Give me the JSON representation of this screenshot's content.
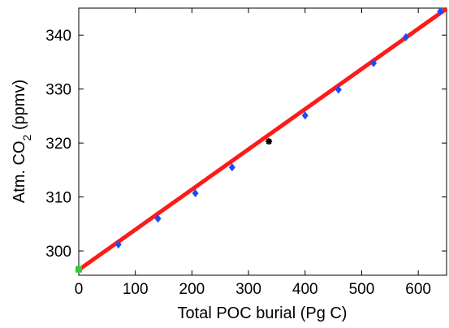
{
  "chart_data": {
    "type": "scatter",
    "title": "",
    "xlabel": "Total POC burial (Pg C)",
    "ylabel": {
      "prefix": "Atm. CO",
      "subscript": "2",
      "suffix": " (ppmv)"
    },
    "xlim": [
      0,
      650
    ],
    "ylim": [
      295.5,
      345
    ],
    "xticks": [
      {
        "value": 0,
        "label": "0"
      },
      {
        "value": 100,
        "label": "100"
      },
      {
        "value": 200,
        "label": "200"
      },
      {
        "value": 300,
        "label": "300"
      },
      {
        "value": 400,
        "label": "400"
      },
      {
        "value": 500,
        "label": "500"
      },
      {
        "value": 600,
        "label": "600"
      }
    ],
    "yticks": [
      {
        "value": 300,
        "label": "300"
      },
      {
        "value": 310,
        "label": "310"
      },
      {
        "value": 320,
        "label": "320"
      },
      {
        "value": 330,
        "label": "330"
      },
      {
        "value": 340,
        "label": "340"
      }
    ],
    "grid": false,
    "series": [
      {
        "marker": "diamond",
        "color": "#1a4cff",
        "points": [
          {
            "x": 70,
            "y": 301.2
          },
          {
            "x": 140,
            "y": 306.0
          },
          {
            "x": 206,
            "y": 310.7
          },
          {
            "x": 271,
            "y": 315.5
          },
          {
            "x": 400,
            "y": 325.1
          },
          {
            "x": 459,
            "y": 329.9
          },
          {
            "x": 521,
            "y": 334.8
          },
          {
            "x": 578,
            "y": 339.6
          },
          {
            "x": 639,
            "y": 344.4
          }
        ]
      },
      {
        "marker": "star",
        "color": "#000000",
        "points": [
          {
            "x": 336,
            "y": 320.3
          }
        ]
      },
      {
        "marker": "square",
        "color": "#33cc33",
        "points": [
          {
            "x": 0,
            "y": 296.6
          }
        ]
      }
    ],
    "fit_line": {
      "color": "#ff1a1a",
      "x": [
        0,
        650
      ],
      "y": [
        296.5,
        344.9
      ]
    }
  }
}
